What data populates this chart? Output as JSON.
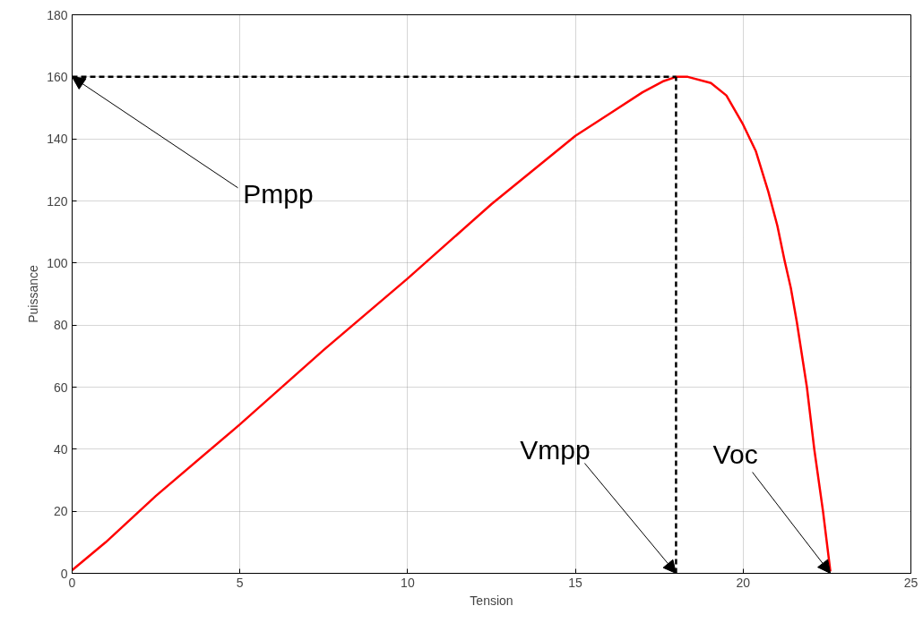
{
  "chart_data": {
    "type": "line",
    "xlabel": "Tension",
    "ylabel": "Puissance",
    "x": [
      0,
      1,
      2.5,
      5,
      7.5,
      10,
      12.5,
      15,
      16,
      17,
      17.6,
      18,
      18.35,
      19.04,
      19.5,
      19.98,
      20.38,
      20.75,
      21.02,
      21.23,
      21.42,
      21.6,
      21.9,
      22.12,
      22.38,
      22.6
    ],
    "series": [
      {
        "color": "#ff0000",
        "values": [
          1,
          10,
          25,
          48,
          72,
          95,
          119,
          141,
          148,
          155,
          158.5,
          160,
          160,
          158,
          154,
          145,
          136,
          123,
          112,
          101,
          92,
          81,
          60,
          40,
          20,
          0.6
        ]
      }
    ],
    "xlim": [
      0,
      25
    ],
    "ylim": [
      0,
      180
    ],
    "xticks": [
      0,
      5,
      10,
      15,
      20,
      25
    ],
    "yticks": [
      0,
      20,
      40,
      60,
      80,
      100,
      120,
      140,
      160,
      180
    ],
    "grid": true,
    "marker": "none",
    "line_style": "solid",
    "ref_lines": [
      {
        "axis": "y",
        "value": 160,
        "color": "#000000",
        "line_style": "dashed"
      },
      {
        "axis": "x",
        "value": 18,
        "color": "#000000",
        "line_style": "dashed"
      }
    ],
    "annotations": [
      {
        "text": "Pmpp",
        "x": 0,
        "y": 160
      },
      {
        "text": "Vmpp",
        "x": 18,
        "y": 0
      },
      {
        "text": "Voc",
        "x": 22.6,
        "y": 0
      }
    ]
  }
}
